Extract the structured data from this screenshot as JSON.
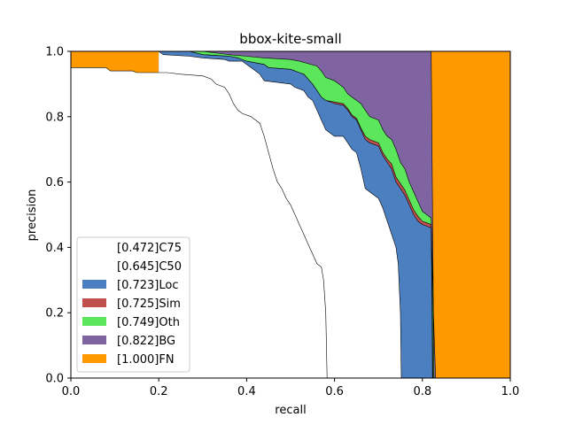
{
  "chart_data": {
    "type": "area",
    "title": "bbox-kite-small",
    "xlabel": "recall",
    "ylabel": "precision",
    "xlim": [
      0,
      1
    ],
    "ylim": [
      0,
      1
    ],
    "xticks": [
      "0.0",
      "0.2",
      "0.4",
      "0.6",
      "0.8",
      "1.0"
    ],
    "yticks": [
      "0.0",
      "0.2",
      "0.4",
      "0.6",
      "0.8",
      "1.0"
    ],
    "grid": false,
    "legend_position": "lower-left",
    "series": [
      {
        "name": "[0.472]C75",
        "color": "#ffffff",
        "points": [
          [
            0,
            0.95
          ],
          [
            0.08,
            0.95
          ],
          [
            0.09,
            0.94
          ],
          [
            0.14,
            0.94
          ],
          [
            0.15,
            0.935
          ],
          [
            0.22,
            0.935
          ],
          [
            0.25,
            0.93
          ],
          [
            0.3,
            0.925
          ],
          [
            0.32,
            0.915
          ],
          [
            0.33,
            0.9
          ],
          [
            0.35,
            0.89
          ],
          [
            0.36,
            0.87
          ],
          [
            0.37,
            0.84
          ],
          [
            0.38,
            0.82
          ],
          [
            0.39,
            0.81
          ],
          [
            0.41,
            0.8
          ],
          [
            0.43,
            0.78
          ],
          [
            0.44,
            0.74
          ],
          [
            0.45,
            0.69
          ],
          [
            0.46,
            0.64
          ],
          [
            0.47,
            0.6
          ],
          [
            0.48,
            0.58
          ],
          [
            0.49,
            0.55
          ],
          [
            0.5,
            0.53
          ],
          [
            0.51,
            0.5
          ],
          [
            0.52,
            0.47
          ],
          [
            0.53,
            0.44
          ],
          [
            0.54,
            0.41
          ],
          [
            0.55,
            0.38
          ],
          [
            0.56,
            0.35
          ],
          [
            0.57,
            0.34
          ],
          [
            0.575,
            0.3
          ],
          [
            0.58,
            0.2
          ],
          [
            0.583,
            0.0
          ]
        ]
      },
      {
        "name": "[0.645]C50",
        "color": "#ffffff",
        "points": [
          [
            0.2,
            1.0
          ],
          [
            0.21,
            0.99
          ],
          [
            0.27,
            0.985
          ],
          [
            0.3,
            0.98
          ],
          [
            0.35,
            0.975
          ],
          [
            0.36,
            0.97
          ],
          [
            0.39,
            0.97
          ],
          [
            0.4,
            0.96
          ],
          [
            0.41,
            0.95
          ],
          [
            0.43,
            0.93
          ],
          [
            0.44,
            0.91
          ],
          [
            0.5,
            0.9
          ],
          [
            0.51,
            0.89
          ],
          [
            0.53,
            0.88
          ],
          [
            0.54,
            0.86
          ],
          [
            0.55,
            0.85
          ],
          [
            0.56,
            0.82
          ],
          [
            0.57,
            0.79
          ],
          [
            0.58,
            0.76
          ],
          [
            0.6,
            0.74
          ],
          [
            0.62,
            0.74
          ],
          [
            0.63,
            0.72
          ],
          [
            0.64,
            0.7
          ],
          [
            0.65,
            0.69
          ],
          [
            0.66,
            0.64
          ],
          [
            0.67,
            0.58
          ],
          [
            0.68,
            0.57
          ],
          [
            0.7,
            0.55
          ],
          [
            0.71,
            0.52
          ],
          [
            0.72,
            0.48
          ],
          [
            0.73,
            0.44
          ],
          [
            0.74,
            0.4
          ],
          [
            0.745,
            0.35
          ],
          [
            0.75,
            0.2
          ],
          [
            0.752,
            0.0
          ]
        ]
      },
      {
        "name": "[0.723]Loc",
        "color": "#4c7fc0",
        "points": [
          [
            0.2,
            1.0
          ],
          [
            0.27,
            1.0
          ],
          [
            0.3,
            0.99
          ],
          [
            0.36,
            0.985
          ],
          [
            0.38,
            0.98
          ],
          [
            0.4,
            0.97
          ],
          [
            0.42,
            0.965
          ],
          [
            0.44,
            0.96
          ],
          [
            0.45,
            0.95
          ],
          [
            0.5,
            0.945
          ],
          [
            0.52,
            0.935
          ],
          [
            0.53,
            0.93
          ],
          [
            0.55,
            0.9
          ],
          [
            0.56,
            0.88
          ],
          [
            0.57,
            0.86
          ],
          [
            0.58,
            0.85
          ],
          [
            0.6,
            0.84
          ],
          [
            0.62,
            0.835
          ],
          [
            0.63,
            0.82
          ],
          [
            0.64,
            0.8
          ],
          [
            0.65,
            0.79
          ],
          [
            0.66,
            0.76
          ],
          [
            0.67,
            0.73
          ],
          [
            0.68,
            0.72
          ],
          [
            0.7,
            0.71
          ],
          [
            0.71,
            0.68
          ],
          [
            0.72,
            0.66
          ],
          [
            0.73,
            0.64
          ],
          [
            0.74,
            0.6
          ],
          [
            0.75,
            0.58
          ],
          [
            0.76,
            0.56
          ],
          [
            0.77,
            0.53
          ],
          [
            0.78,
            0.5
          ],
          [
            0.79,
            0.48
          ],
          [
            0.8,
            0.47
          ],
          [
            0.81,
            0.465
          ],
          [
            0.82,
            0.46
          ],
          [
            0.822,
            0.2
          ],
          [
            0.823,
            0.0
          ]
        ]
      },
      {
        "name": "[0.725]Sim",
        "color": "#c0504d",
        "points": [
          [
            0.2,
            1.0
          ],
          [
            0.27,
            1.0
          ],
          [
            0.3,
            0.99
          ],
          [
            0.36,
            0.985
          ],
          [
            0.38,
            0.98
          ],
          [
            0.4,
            0.97
          ],
          [
            0.42,
            0.965
          ],
          [
            0.44,
            0.96
          ],
          [
            0.45,
            0.95
          ],
          [
            0.5,
            0.945
          ],
          [
            0.52,
            0.935
          ],
          [
            0.53,
            0.93
          ],
          [
            0.55,
            0.9
          ],
          [
            0.56,
            0.88
          ],
          [
            0.57,
            0.86
          ],
          [
            0.58,
            0.85
          ],
          [
            0.6,
            0.845
          ],
          [
            0.62,
            0.84
          ],
          [
            0.63,
            0.825
          ],
          [
            0.64,
            0.805
          ],
          [
            0.65,
            0.795
          ],
          [
            0.66,
            0.765
          ],
          [
            0.67,
            0.74
          ],
          [
            0.68,
            0.73
          ],
          [
            0.7,
            0.72
          ],
          [
            0.71,
            0.69
          ],
          [
            0.72,
            0.67
          ],
          [
            0.73,
            0.655
          ],
          [
            0.74,
            0.615
          ],
          [
            0.75,
            0.595
          ],
          [
            0.76,
            0.575
          ],
          [
            0.77,
            0.545
          ],
          [
            0.78,
            0.515
          ],
          [
            0.79,
            0.495
          ],
          [
            0.8,
            0.48
          ],
          [
            0.81,
            0.475
          ],
          [
            0.82,
            0.47
          ],
          [
            0.823,
            0.2
          ],
          [
            0.824,
            0.0
          ]
        ]
      },
      {
        "name": "[0.749]Oth",
        "color": "#5ce65c",
        "points": [
          [
            0.2,
            1.0
          ],
          [
            0.3,
            1.0
          ],
          [
            0.36,
            0.99
          ],
          [
            0.4,
            0.985
          ],
          [
            0.44,
            0.98
          ],
          [
            0.5,
            0.975
          ],
          [
            0.52,
            0.97
          ],
          [
            0.56,
            0.955
          ],
          [
            0.57,
            0.94
          ],
          [
            0.58,
            0.92
          ],
          [
            0.6,
            0.91
          ],
          [
            0.62,
            0.89
          ],
          [
            0.63,
            0.87
          ],
          [
            0.64,
            0.86
          ],
          [
            0.66,
            0.84
          ],
          [
            0.67,
            0.82
          ],
          [
            0.68,
            0.8
          ],
          [
            0.7,
            0.79
          ],
          [
            0.71,
            0.76
          ],
          [
            0.72,
            0.74
          ],
          [
            0.73,
            0.73
          ],
          [
            0.74,
            0.7
          ],
          [
            0.75,
            0.66
          ],
          [
            0.76,
            0.64
          ],
          [
            0.77,
            0.6
          ],
          [
            0.78,
            0.57
          ],
          [
            0.79,
            0.54
          ],
          [
            0.8,
            0.51
          ],
          [
            0.81,
            0.5
          ],
          [
            0.82,
            0.49
          ],
          [
            0.825,
            0.2
          ],
          [
            0.826,
            0.0
          ]
        ]
      },
      {
        "name": "[0.822]BG",
        "color": "#8064a2",
        "points": [
          [
            0.2,
            1.0
          ],
          [
            0.82,
            1.0
          ],
          [
            0.825,
            0.2
          ],
          [
            0.83,
            0.0
          ]
        ]
      },
      {
        "name": "[1.000]FN",
        "color": "#ff9900",
        "points": [
          [
            0,
            1.0
          ],
          [
            1,
            1.0
          ],
          [
            1,
            0.0
          ]
        ]
      }
    ]
  }
}
